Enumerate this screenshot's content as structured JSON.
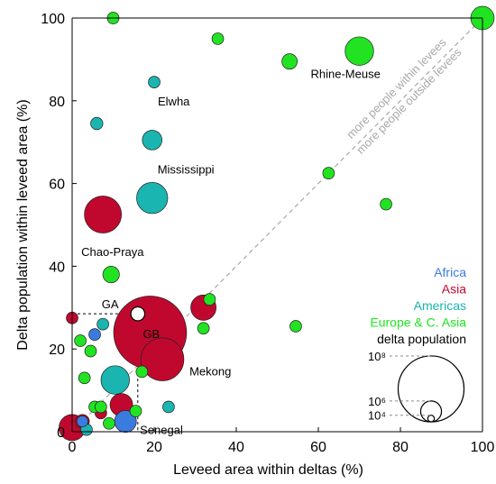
{
  "chart_data": {
    "type": "scatter",
    "title": "",
    "xlabel": "Leveed area within deltas (%)",
    "ylabel": "Delta population within leveed area (%)",
    "xlim": [
      0,
      100
    ],
    "ylim": [
      0,
      100
    ],
    "xticks": [
      "0",
      "20",
      "40",
      "60",
      "80",
      "100"
    ],
    "yticks": [
      "0",
      "20",
      "40",
      "60",
      "80",
      "100"
    ],
    "grid": false,
    "colors": {
      "Africa": "#3a7be0",
      "Asia": "#c0082e",
      "Americas": "#1ab5b0",
      "Europe & C. Asia": "#22e322",
      "delta population": "#000000",
      "diagonal": "#a8a8a8"
    },
    "diagonal_labels": [
      "more people within levees",
      "more people outside levees"
    ],
    "legend": {
      "placement": "bottom-right",
      "entries": [
        "Africa",
        "Asia",
        "Americas",
        "Europe & C. Asia",
        "delta population"
      ],
      "size_labels": [
        "10⁸",
        "10⁶",
        "10⁴"
      ],
      "size_values": [
        100000000,
        1000000,
        10000
      ]
    },
    "points": [
      {
        "label": "GB",
        "region": "Asia",
        "x": 19,
        "y": 24,
        "pop": 150000000
      },
      {
        "label": "Mekong",
        "region": "Asia",
        "x": 22,
        "y": 17.5,
        "pop": 18000000
      },
      {
        "label": "Chao-Praya",
        "region": "Asia",
        "x": 7.5,
        "y": 52.5,
        "pop": 10000000
      },
      {
        "label": "",
        "region": "Asia",
        "x": 32,
        "y": 30,
        "pop": 2200000
      },
      {
        "label": "",
        "region": "Asia",
        "x": 12,
        "y": 6.5,
        "pop": 1400000
      },
      {
        "label": "",
        "region": "Asia",
        "x": 0,
        "y": 1,
        "pop": 2500000
      },
      {
        "label": "",
        "region": "Asia",
        "x": 0,
        "y": 27.5,
        "pop": 100000
      },
      {
        "label": "",
        "region": "Asia",
        "x": 2.5,
        "y": 2.5,
        "pop": 200000
      },
      {
        "label": "",
        "region": "Asia",
        "x": 7,
        "y": 4.5,
        "pop": 100000
      },
      {
        "label": "Mississippi",
        "region": "Americas",
        "x": 19.5,
        "y": 56.5,
        "pop": 5000000
      },
      {
        "label": "",
        "region": "Americas",
        "x": 10.5,
        "y": 12.5,
        "pop": 3500000
      },
      {
        "label": "",
        "region": "Americas",
        "x": 19.5,
        "y": 70.5,
        "pop": 800000
      },
      {
        "label": "Elwha",
        "region": "Americas",
        "x": 20,
        "y": 84.5,
        "pop": 100000
      },
      {
        "label": "",
        "region": "Americas",
        "x": 6,
        "y": 74.5,
        "pop": 120000
      },
      {
        "label": "",
        "region": "Americas",
        "x": 7.5,
        "y": 26,
        "pop": 100000
      },
      {
        "label": "",
        "region": "Americas",
        "x": 23.5,
        "y": 6,
        "pop": 100000
      },
      {
        "label": "",
        "region": "Americas",
        "x": 3.5,
        "y": 0.5,
        "pop": 100000
      },
      {
        "label": "Rhine-Meuse",
        "region": "Europe & C. Asia",
        "x": 70,
        "y": 92,
        "pop": 3500000
      },
      {
        "label": "",
        "region": "Europe & C. Asia",
        "x": 100,
        "y": 100,
        "pop": 1600000
      },
      {
        "label": "",
        "region": "Europe & C. Asia",
        "x": 10,
        "y": 100,
        "pop": 100000
      },
      {
        "label": "",
        "region": "Europe & C. Asia",
        "x": 35.5,
        "y": 95,
        "pop": 100000
      },
      {
        "label": "",
        "region": "Europe & C. Asia",
        "x": 53,
        "y": 89.5,
        "pop": 300000
      },
      {
        "label": "",
        "region": "Europe & C. Asia",
        "x": 62.5,
        "y": 62.5,
        "pop": 100000
      },
      {
        "label": "",
        "region": "Europe & C. Asia",
        "x": 76.5,
        "y": 55,
        "pop": 100000
      },
      {
        "label": "",
        "region": "Europe & C. Asia",
        "x": 54.5,
        "y": 25.5,
        "pop": 100000
      },
      {
        "label": "",
        "region": "Europe & C. Asia",
        "x": 33.5,
        "y": 32,
        "pop": 100000
      },
      {
        "label": "",
        "region": "Europe & C. Asia",
        "x": 32,
        "y": 25,
        "pop": 100000
      },
      {
        "label": "",
        "region": "Europe & C. Asia",
        "x": 9.5,
        "y": 38,
        "pop": 400000
      },
      {
        "label": "",
        "region": "Europe & C. Asia",
        "x": 2,
        "y": 22,
        "pop": 100000
      },
      {
        "label": "",
        "region": "Europe & C. Asia",
        "x": 4.5,
        "y": 19.5,
        "pop": 100000
      },
      {
        "label": "",
        "region": "Europe & C. Asia",
        "x": 3,
        "y": 13,
        "pop": 100000
      },
      {
        "label": "",
        "region": "Europe & C. Asia",
        "x": 5.5,
        "y": 6,
        "pop": 100000
      },
      {
        "label": "",
        "region": "Europe & C. Asia",
        "x": 7,
        "y": 6,
        "pop": 100000
      },
      {
        "label": "",
        "region": "Europe & C. Asia",
        "x": 9,
        "y": 2,
        "pop": 100000
      },
      {
        "label": "",
        "region": "Europe & C. Asia",
        "x": 15.5,
        "y": 5,
        "pop": 100000
      },
      {
        "label": "",
        "region": "Europe & C. Asia",
        "x": 17,
        "y": 14.5,
        "pop": 100000
      },
      {
        "label": "",
        "region": "Africa",
        "x": 13,
        "y": 2.5,
        "pop": 1200000
      },
      {
        "label": "",
        "region": "Africa",
        "x": 5.5,
        "y": 23.5,
        "pop": 100000
      },
      {
        "label": "",
        "region": "Africa",
        "x": 2.5,
        "y": 2.5,
        "pop": 80000
      },
      {
        "label": "GA",
        "region": "Other",
        "x": 16,
        "y": 28.5,
        "pop": 200000
      }
    ],
    "annotations": [
      {
        "text": "Rhine-Meuse",
        "x": 70,
        "y": 92
      },
      {
        "text": "Elwha",
        "x": 20,
        "y": 84.5
      },
      {
        "text": "Mississippi",
        "x": 19.5,
        "y": 56.5
      },
      {
        "text": "Chao-Praya",
        "x": 7.5,
        "y": 52.5
      },
      {
        "text": "GA",
        "x": 16,
        "y": 28.5
      },
      {
        "text": "GB",
        "x": 19,
        "y": 24
      },
      {
        "text": "Mekong",
        "x": 22,
        "y": 17.5
      },
      {
        "text": "Senegal",
        "x": 13,
        "y": 2.5
      }
    ],
    "ga_reference": {
      "x": 16,
      "y": 28.5
    }
  }
}
